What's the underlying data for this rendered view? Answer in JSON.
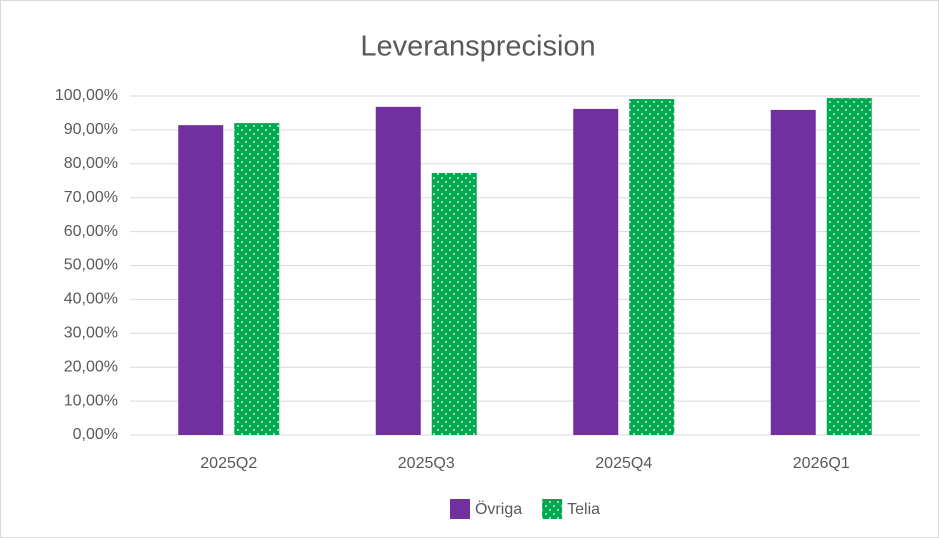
{
  "chart_data": {
    "type": "bar",
    "title": "Leveransprecision",
    "categories": [
      "2025Q2",
      "2025Q3",
      "2025Q4",
      "2026Q1"
    ],
    "series": [
      {
        "name": "Övriga",
        "color": "#7030a0",
        "values": [
          91.4,
          96.8,
          96.2,
          95.9
        ]
      },
      {
        "name": "Telia",
        "color": "#00a84f",
        "pattern": "dots",
        "values": [
          92.0,
          77.3,
          99.1,
          99.4
        ]
      }
    ],
    "ylim": [
      0,
      100
    ],
    "yticks": [
      {
        "value": 0,
        "label": "0,00%"
      },
      {
        "value": 10,
        "label": "10,00%"
      },
      {
        "value": 20,
        "label": "20,00%"
      },
      {
        "value": 30,
        "label": "30,00%"
      },
      {
        "value": 40,
        "label": "40,00%"
      },
      {
        "value": 50,
        "label": "50,00%"
      },
      {
        "value": 60,
        "label": "60,00%"
      },
      {
        "value": 70,
        "label": "70,00%"
      },
      {
        "value": 80,
        "label": "80,00%"
      },
      {
        "value": 90,
        "label": "90,00%"
      },
      {
        "value": 100,
        "label": "100,00%"
      }
    ],
    "grid": true,
    "legend": "bottom"
  }
}
